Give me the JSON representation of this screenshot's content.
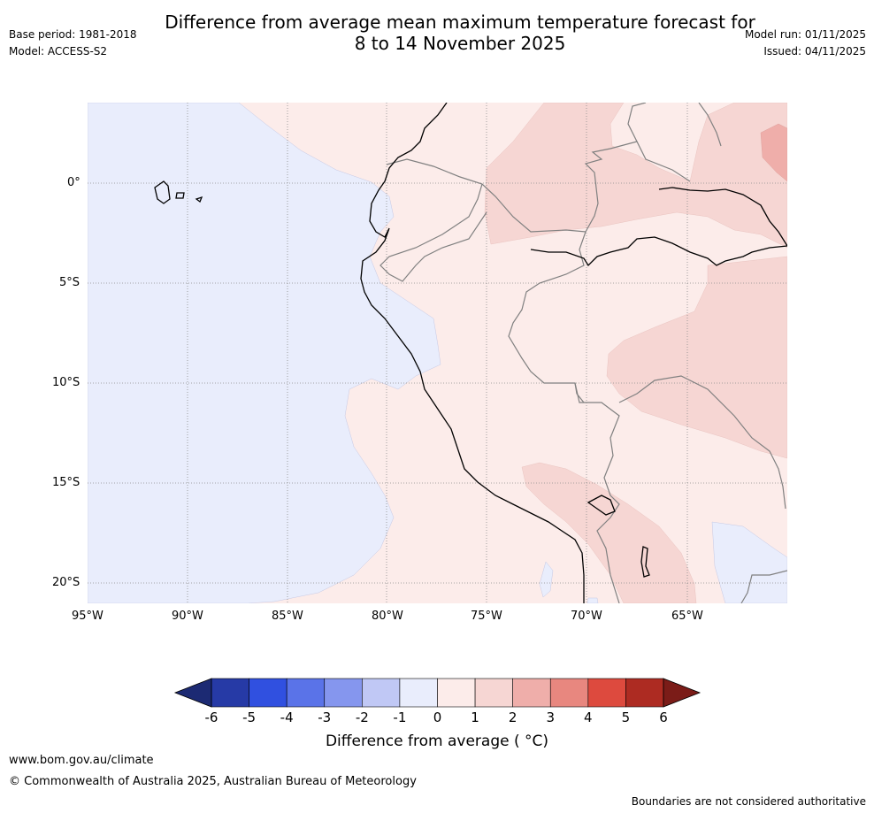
{
  "header": {
    "title_line1": "Difference from average mean maximum temperature forecast for",
    "title_line2": "8 to 14 November 2025",
    "base_period": "Base period: 1981-2018",
    "model": "Model: ACCESS-S2",
    "model_run": "Model run: 01/11/2025",
    "issued": "Issued: 04/11/2025"
  },
  "map": {
    "lat_labels": [
      "0°",
      "5°S",
      "10°S",
      "15°S",
      "20°S"
    ],
    "lon_labels": [
      "95°W",
      "90°W",
      "85°W",
      "80°W",
      "75°W",
      "70°W",
      "65°W"
    ],
    "colors": {
      "ocean_neg": "#e9edfc",
      "pos_0_1": "#fcecea",
      "pos_1_2": "#f6d6d3",
      "pos_2_3": "#efaeaa",
      "coast": "#000000",
      "border": "#808080",
      "grid": "#8a8a8a"
    }
  },
  "colorbar": {
    "ticks": [
      "-6",
      "-5",
      "-4",
      "-3",
      "-2",
      "-1",
      "0",
      "1",
      "2",
      "3",
      "4",
      "5",
      "6"
    ],
    "bins": [
      "#263aa6",
      "#3050e0",
      "#5a73e8",
      "#8596ee",
      "#c0c8f5",
      "#e9edfc",
      "#fcecea",
      "#f6d6d3",
      "#efaeaa",
      "#e8877f",
      "#dd4a3e",
      "#ad2b22"
    ],
    "under_color": "#1c2a73",
    "over_color": "#7b1c18",
    "label": "Difference from average ( °C)"
  },
  "footer": {
    "website": "www.bom.gov.au/climate",
    "copyright": "© Commonwealth of Australia 2025, Australian Bureau of Meteorology",
    "disclaimer": "Boundaries are not considered authoritative"
  }
}
